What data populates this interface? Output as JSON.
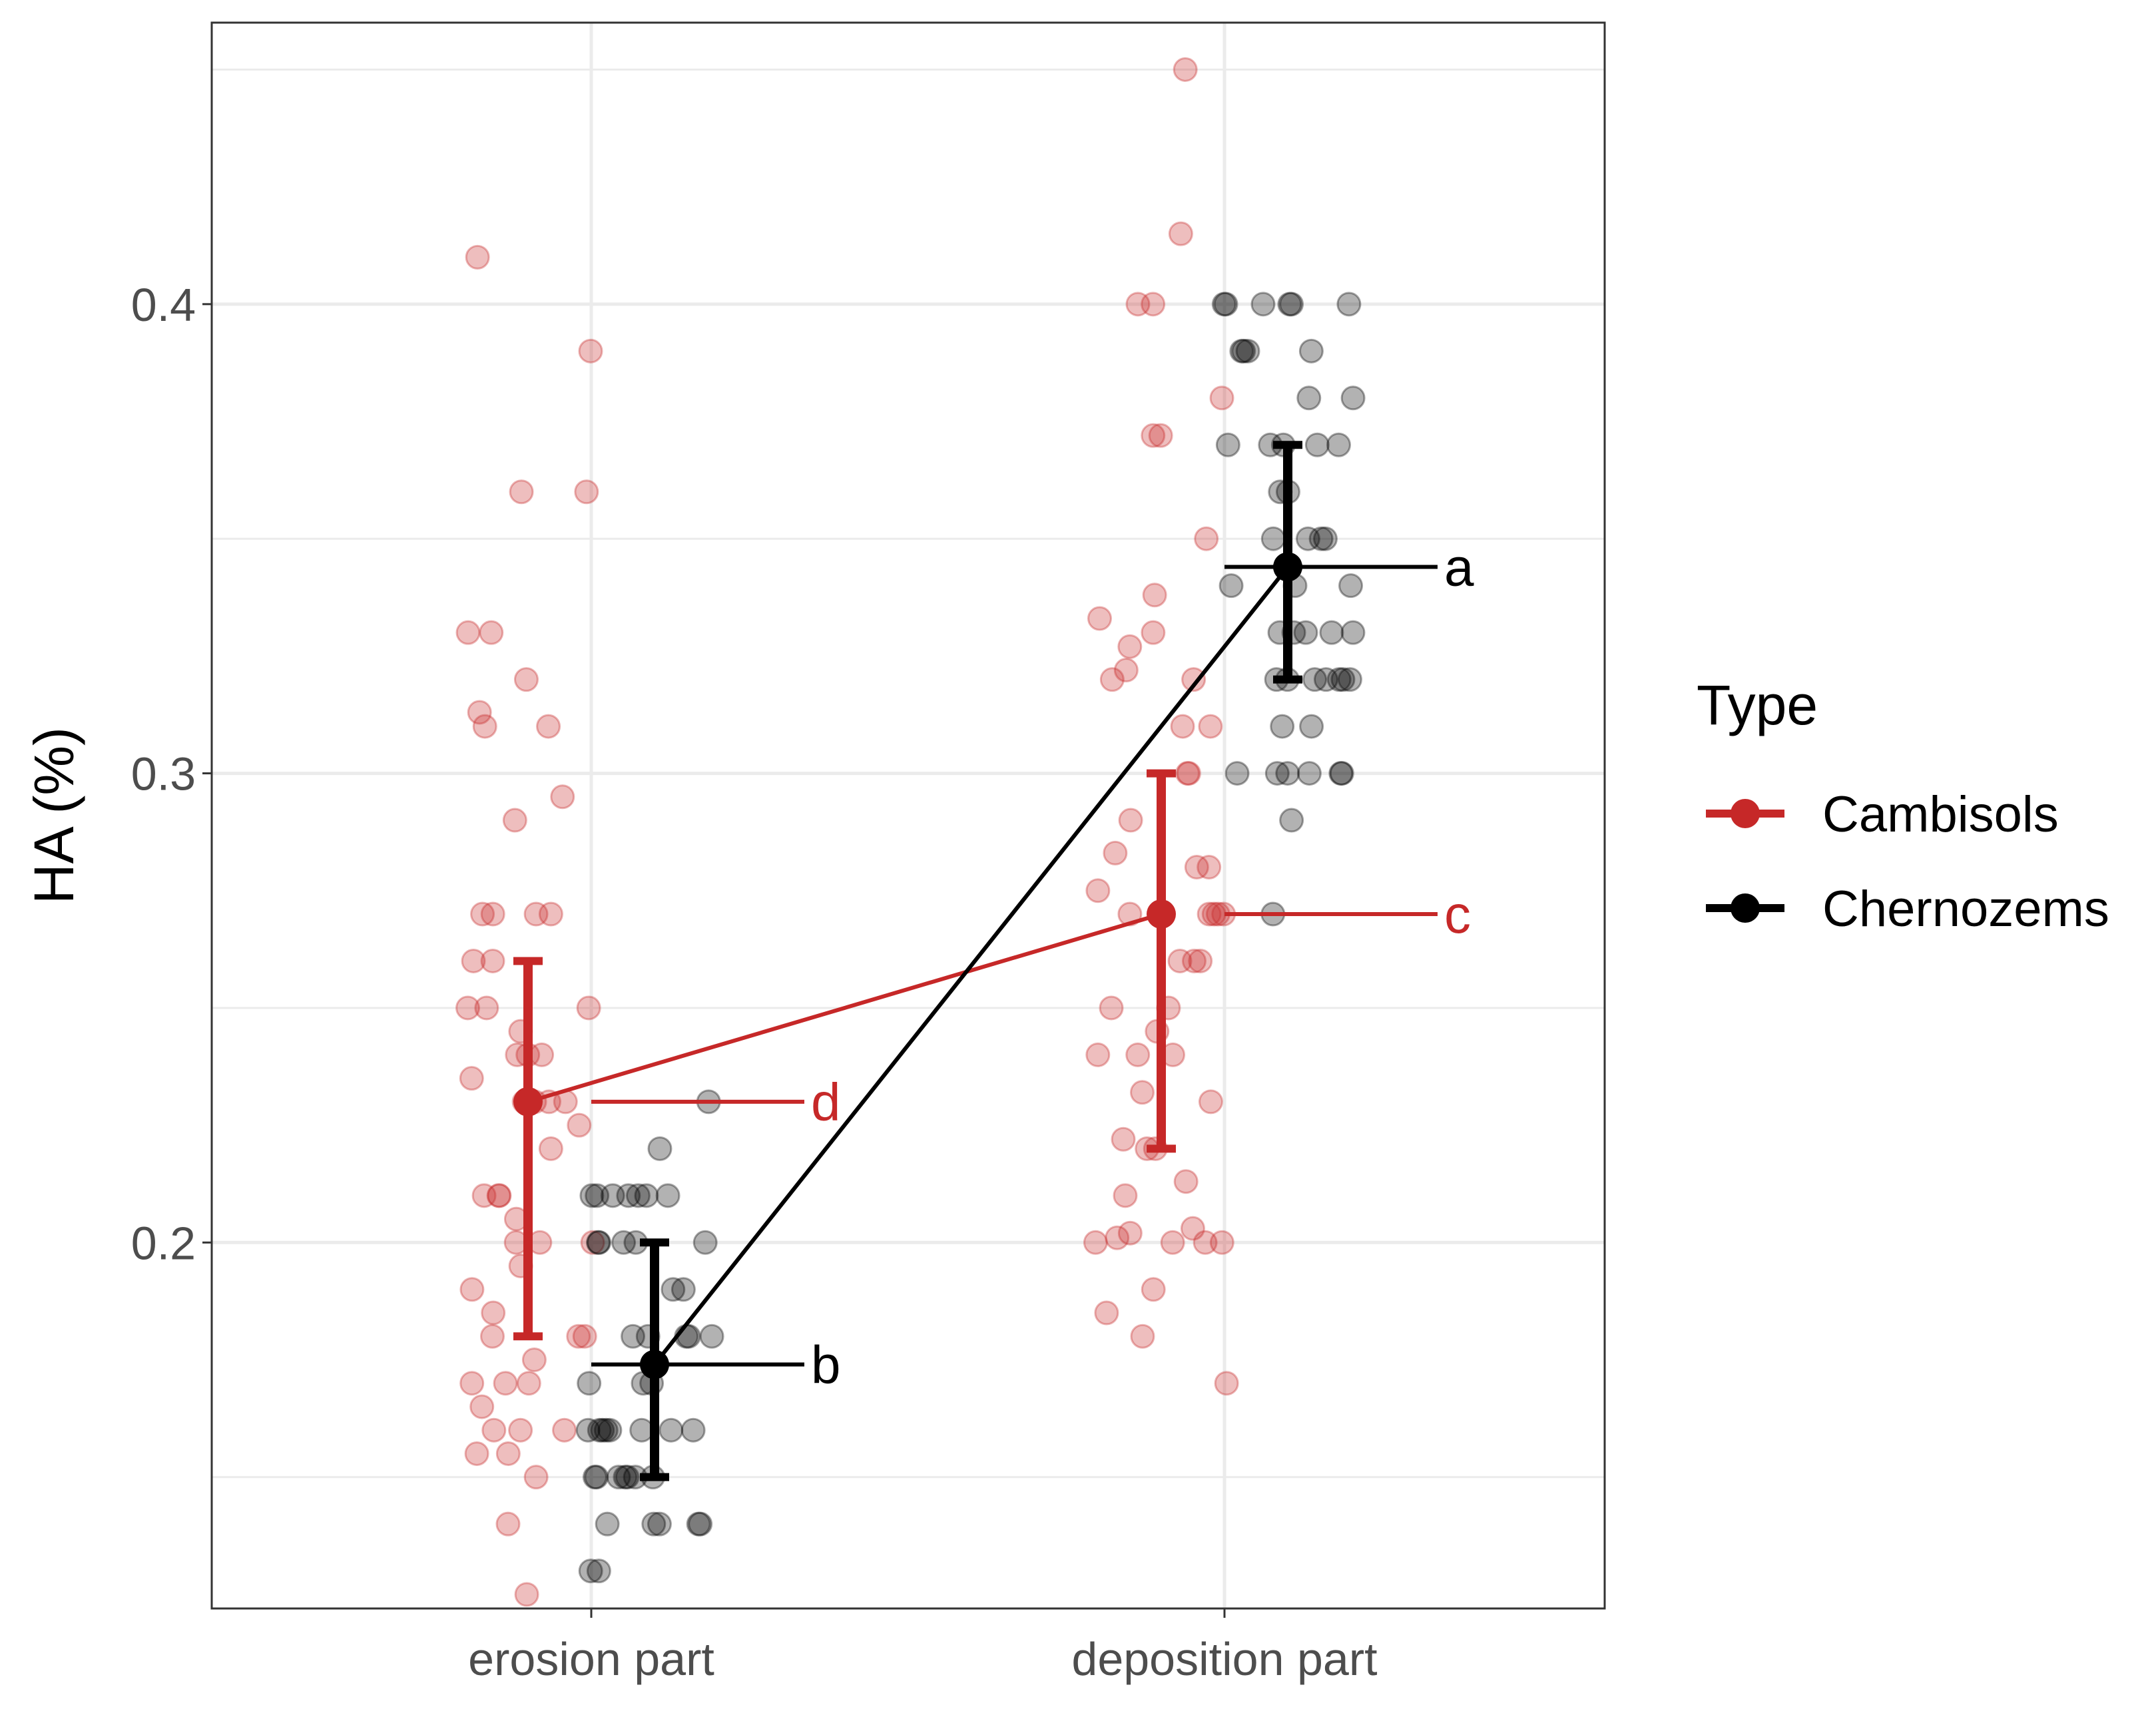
{
  "chart_data": {
    "type": "scatter",
    "title": "",
    "xlabel": "",
    "ylabel": "HA (%)",
    "categories": [
      "erosion part",
      "deposition part"
    ],
    "ylim": [
      0.122,
      0.46
    ],
    "yticks": [
      0.2,
      0.3,
      0.4
    ],
    "ytick_labels": [
      "0.2",
      "0.3",
      "0.4"
    ],
    "grid": true,
    "legend": {
      "title": "Type",
      "position": "right"
    },
    "colors": {
      "Cambisols": "#c62828",
      "Chernozems": "#000000",
      "grid": "#ebebeb",
      "panel_border": "#333333"
    },
    "series": [
      {
        "name": "Cambisols",
        "color": "#c62828",
        "means": [
          0.23,
          0.27
        ],
        "lower": [
          0.18,
          0.22
        ],
        "upper": [
          0.26,
          0.3
        ],
        "letters": [
          "d",
          "c"
        ],
        "points": [
          [
            0.125,
            0.15,
            0.155,
            0.16,
            0.16,
            0.17,
            0.17,
            0.18,
            0.2,
            0.2,
            0.21,
            0.23,
            0.23,
            0.235,
            0.24,
            0.26,
            0.27,
            0.27,
            0.27,
            0.32,
            0.31,
            0.33,
            0.36,
            0.39,
            0.41,
            0.245,
            0.25,
            0.25,
            0.24,
            0.23,
            0.22,
            0.21,
            0.21,
            0.2,
            0.195,
            0.18,
            0.175,
            0.17,
            0.165,
            0.16,
            0.155,
            0.14,
            0.19,
            0.18,
            0.185,
            0.225,
            0.23,
            0.27,
            0.24,
            0.29,
            0.295,
            0.31,
            0.313,
            0.33,
            0.36,
            0.26,
            0.25,
            0.205
          ],
          [
            0.45,
            0.415,
            0.38,
            0.4,
            0.4,
            0.372,
            0.372,
            0.35,
            0.338,
            0.33,
            0.327,
            0.322,
            0.32,
            0.32,
            0.29,
            0.28,
            0.28,
            0.27,
            0.27,
            0.27,
            0.26,
            0.26,
            0.25,
            0.24,
            0.24,
            0.232,
            0.222,
            0.22,
            0.213,
            0.203,
            0.202,
            0.2,
            0.2,
            0.18,
            0.2,
            0.19,
            0.185,
            0.17,
            0.22,
            0.23,
            0.24,
            0.245,
            0.25,
            0.26,
            0.27,
            0.27,
            0.275,
            0.283,
            0.3,
            0.3,
            0.31,
            0.31,
            0.21,
            0.2,
            0.201,
            0.333
          ]
        ]
      },
      {
        "name": "Chernozems",
        "color": "#000000",
        "means": [
          0.174,
          0.344
        ],
        "lower": [
          0.15,
          0.32
        ],
        "upper": [
          0.2,
          0.37
        ],
        "letters": [
          "b",
          "a"
        ],
        "points": [
          [
            0.13,
            0.13,
            0.14,
            0.14,
            0.14,
            0.14,
            0.14,
            0.15,
            0.15,
            0.15,
            0.15,
            0.15,
            0.15,
            0.15,
            0.16,
            0.16,
            0.16,
            0.16,
            0.16,
            0.16,
            0.16,
            0.16,
            0.17,
            0.17,
            0.17,
            0.18,
            0.18,
            0.18,
            0.18,
            0.18,
            0.19,
            0.19,
            0.2,
            0.2,
            0.2,
            0.2,
            0.2,
            0.21,
            0.21,
            0.21,
            0.21,
            0.21,
            0.21,
            0.21,
            0.22,
            0.23
          ],
          [
            0.29,
            0.3,
            0.3,
            0.3,
            0.3,
            0.3,
            0.3,
            0.31,
            0.31,
            0.32,
            0.32,
            0.32,
            0.32,
            0.32,
            0.32,
            0.32,
            0.33,
            0.33,
            0.33,
            0.33,
            0.33,
            0.34,
            0.34,
            0.34,
            0.35,
            0.35,
            0.35,
            0.35,
            0.36,
            0.36,
            0.37,
            0.37,
            0.37,
            0.37,
            0.37,
            0.38,
            0.38,
            0.39,
            0.39,
            0.39,
            0.39,
            0.4,
            0.4,
            0.4,
            0.4,
            0.4,
            0.4,
            0.27
          ]
        ]
      }
    ]
  }
}
